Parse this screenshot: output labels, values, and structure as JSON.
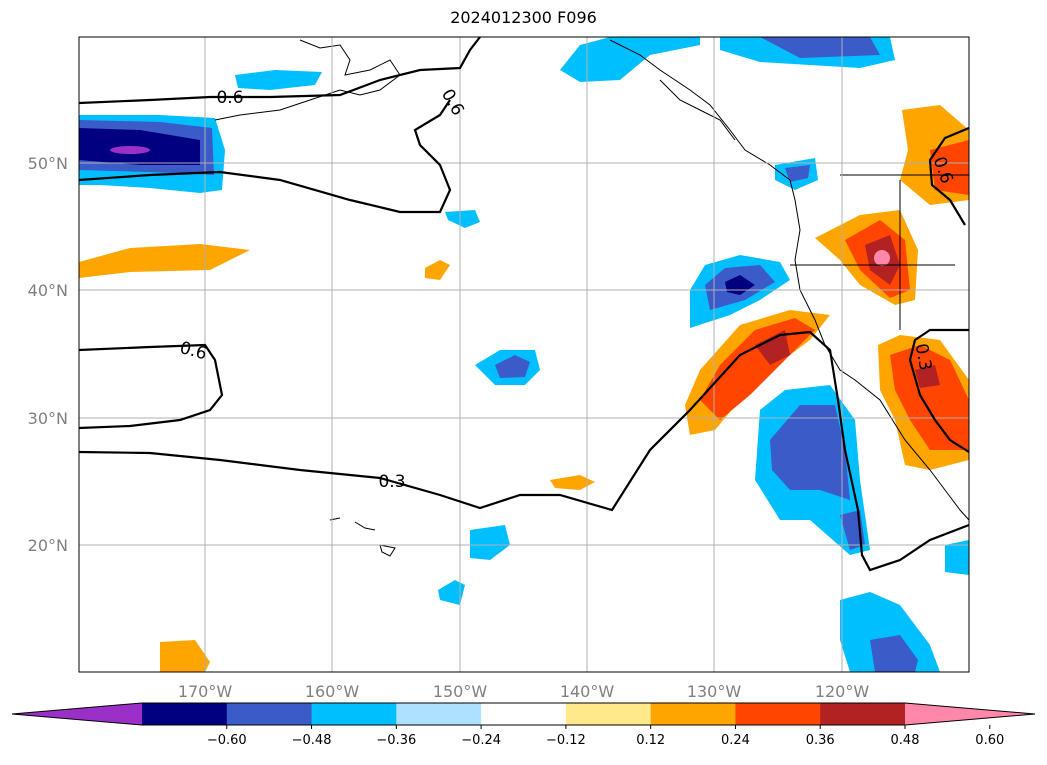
{
  "title": "2024012300 F096",
  "lat_labels": [
    "50°N",
    "40°N",
    "30°N",
    "20°N"
  ],
  "lon_labels": [
    "170°W",
    "160°W",
    "150°W",
    "140°W",
    "130°W",
    "120°W"
  ],
  "contour_labels": [
    "0.6",
    "0.6",
    "0.6",
    "0.6",
    "0.3",
    "0.3"
  ],
  "colorbar": {
    "tick_labels": [
      "−0.60",
      "−0.48",
      "−0.36",
      "−0.24",
      "−0.12",
      "0.12",
      "0.24",
      "0.36",
      "0.48",
      "0.60"
    ],
    "colors": [
      "#9b30c8",
      "#000080",
      "#3a5bc8",
      "#00bfff",
      "#aee0ff",
      "#ffffff",
      "#ffe98a",
      "#ffa500",
      "#ff4500",
      "#b22222",
      "#ff88aa"
    ]
  },
  "colors": {
    "coast": "#000000",
    "grid": "#b0b0b0",
    "contour": "#000000"
  }
}
